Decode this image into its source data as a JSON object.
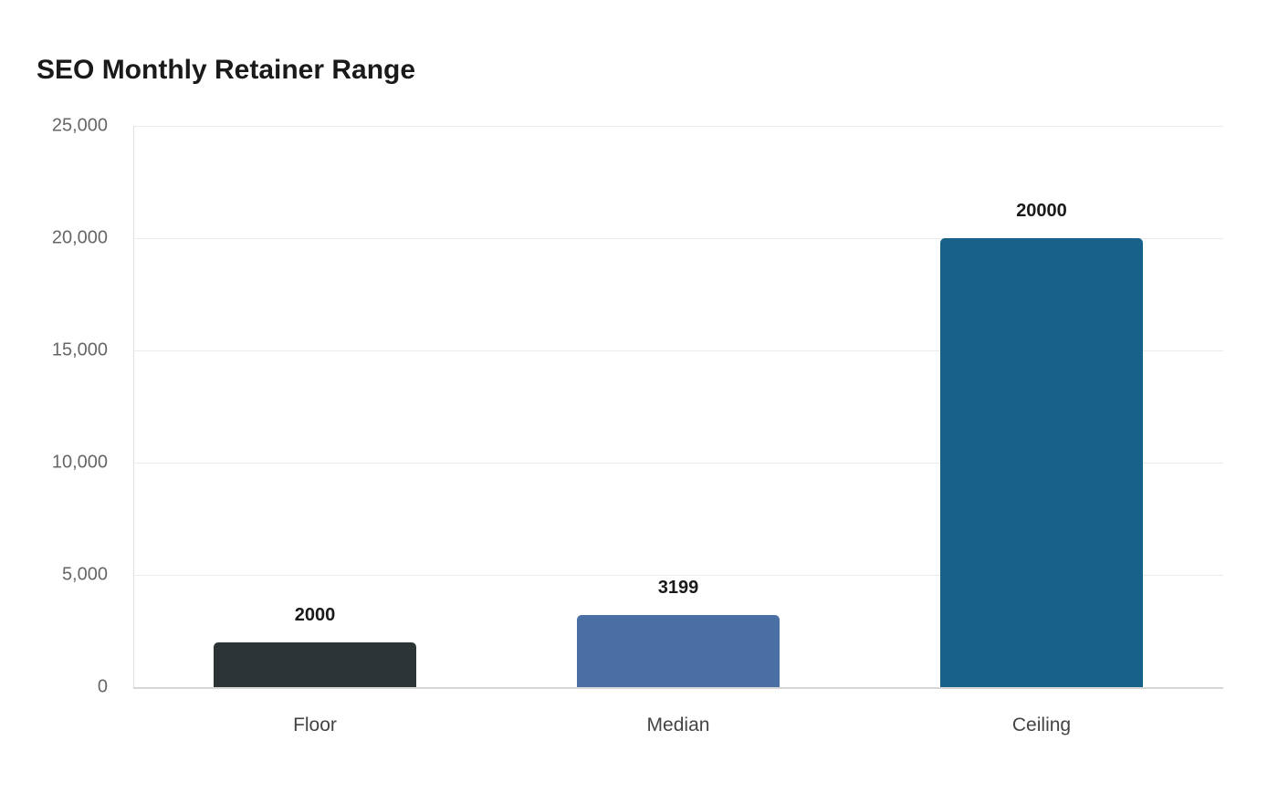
{
  "chart_data": {
    "type": "bar",
    "title": "SEO Monthly Retainer Range",
    "xlabel": "",
    "ylabel": "",
    "categories": [
      "Floor",
      "Median",
      "Ceiling"
    ],
    "values": [
      2000,
      3199,
      20000
    ],
    "value_labels": [
      "2000",
      "3199",
      "20000"
    ],
    "colors": [
      "#2d3436",
      "#4a6fa5",
      "#186289"
    ],
    "ylim": [
      0,
      25000
    ],
    "yticks": [
      0,
      5000,
      10000,
      15000,
      20000,
      25000
    ],
    "ytick_labels": [
      "0",
      "5,000",
      "10,000",
      "15,000",
      "20,000",
      "25,000"
    ],
    "grid": true,
    "legend": null
  }
}
